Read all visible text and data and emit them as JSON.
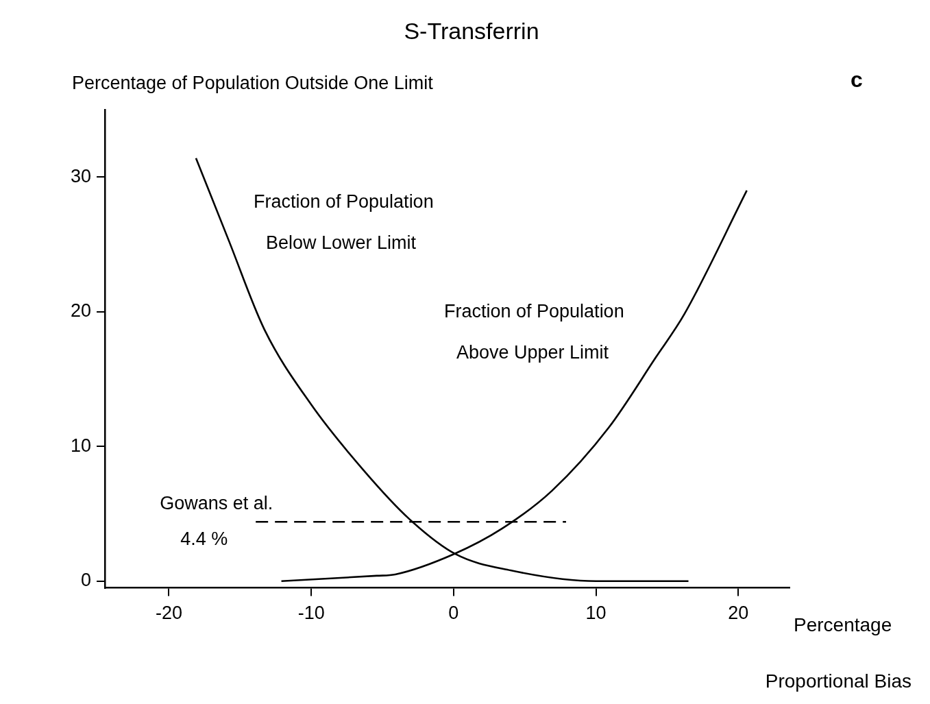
{
  "chart_data": {
    "type": "line",
    "title": "S-Transferrin",
    "ylabel": "Percentage of Population Outside One Limit",
    "xlabel": "Percentage",
    "annotations": [
      "c",
      "Proportional Bias",
      {
        "text": "Gowans et al.",
        "x": -13.9,
        "y": 4.4
      },
      {
        "text": "4.4 %",
        "x": -13.9,
        "y": 4.4
      }
    ],
    "xlim": [
      -24.5,
      23.6
    ],
    "xticks": [
      -20,
      -10,
      0,
      10,
      20
    ],
    "ylim": [
      -0.5,
      35
    ],
    "yticks": [
      0,
      10,
      20,
      30
    ],
    "grid": false,
    "legend": false,
    "marker": "none",
    "line_style": "solid",
    "series": [
      {
        "name": "Fraction of Population\nBelow Lower Limit",
        "color": "#000000",
        "x": [
          -18.1,
          -15.8,
          -13.3,
          -10.0,
          -6.3,
          -3.1,
          0.15,
          4.0,
          10.0,
          16.5
        ],
        "values": [
          31.4,
          25.3,
          18.7,
          13.1,
          8.2,
          4.6,
          2.0,
          0.8,
          0.0,
          0.0
        ]
      },
      {
        "name": "Fraction of Population\nAbove Upper Limit",
        "color": "#000000",
        "x": [
          -12.1,
          -5.4,
          -4.1,
          0,
          3.4,
          6.9,
          10.9,
          14.2,
          16.2,
          20.6
        ],
        "values": [
          0.0,
          0.4,
          0.5,
          2.0,
          3.9,
          6.7,
          11.4,
          16.6,
          19.8,
          29.0
        ]
      },
      {
        "color": "#000000",
        "line_style": "dashed",
        "x": [
          -13.9,
          7.9
        ],
        "values": [
          4.4,
          4.4
        ]
      }
    ]
  }
}
